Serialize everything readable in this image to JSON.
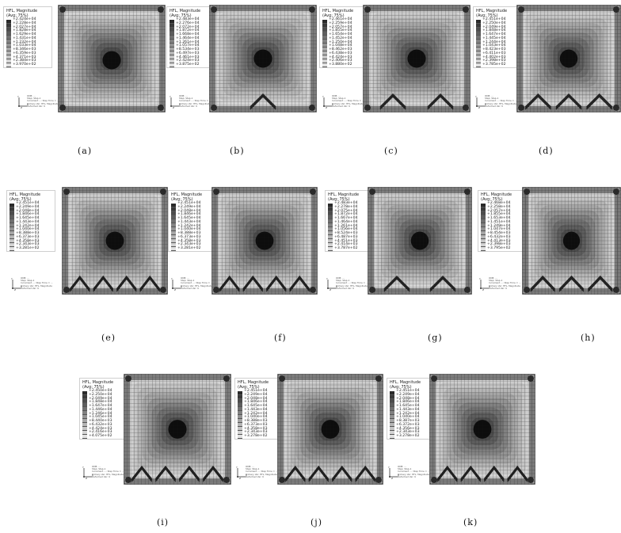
{
  "legend_title": "HFL, Magnitude",
  "legend_avg": "(Avg: 75%)",
  "triad_axes": {
    "x": "X",
    "y": "Y",
    "z": "Z"
  },
  "triad_meta": "ODB: ...\nStep: Step-1\nIncrement ...: Step Time = ...\nPrimary Var: HFL, Magnitude\nDeformed Var: U",
  "colors": {
    "contour_scale": [
      "#2a2a2a",
      "#3a3a3a",
      "#4c4c4c",
      "#5e5e5e",
      "#707070",
      "#828282",
      "#949494",
      "#a6a6a6",
      "#b6b6b6",
      "#c6c6c6",
      "#d4d4d4",
      "#e2e2e2"
    ],
    "mesh": "#1a1a1a",
    "core": "#0d0d0d"
  },
  "panels": [
    {
      "caption": "(a)",
      "bumps": 0,
      "legend": [
        "+2.424e+04",
        "+2.228e+04",
        "+2.027e+04",
        "+1.828e+04",
        "+1.629e+04",
        "+1.431e+04",
        "+1.232e+04",
        "+1.033e+04",
        "+8.346e+03",
        "+6.359e+03",
        "+4.371e+03",
        "+2.384e+03",
        "+3.970e+02"
      ]
    },
    {
      "caption": "(b)",
      "bumps": 1,
      "legend": [
        "+2.483e+04",
        "+2.276e+04",
        "+2.072e+04",
        "+1.872e+04",
        "+1.668e+04",
        "+1.464e+04",
        "+1.261e+04",
        "+1.057e+04",
        "+8.534e+03",
        "+6.497e+03",
        "+4.461e+03",
        "+2.424e+03",
        "+3.875e+02"
      ]
    },
    {
      "caption": "(c)",
      "bumps": 2,
      "legend": [
        "+2.461e+04",
        "+2.259e+04",
        "+2.057e+04",
        "+1.855e+04",
        "+1.654e+04",
        "+1.452e+04",
        "+1.250e+04",
        "+1.048e+04",
        "+8.462e+03",
        "+6.438e+03",
        "+4.424e+03",
        "+2.406e+03",
        "+3.880e+02"
      ]
    },
    {
      "caption": "(d)",
      "bumps": 3,
      "legend": [
        "+2.451e+04",
        "+2.250e+04",
        "+2.049e+04",
        "+1.848e+04",
        "+1.647e+04",
        "+1.445e+04",
        "+1.244e+04",
        "+1.043e+04",
        "+8.423e+03",
        "+6.411e+03",
        "+4.402e+03",
        "+2.398e+03",
        "+3.785e+02"
      ]
    },
    {
      "caption": "(e)",
      "bumps": 4,
      "legend": [
        "+2.451e+04",
        "+2.249e+04",
        "+2.048e+04",
        "+1.846e+04",
        "+1.645e+04",
        "+1.443e+04",
        "+1.242e+04",
        "+1.040e+04",
        "+8.388e+03",
        "+6.373e+03",
        "+4.358e+03",
        "+2.343e+03",
        "+3.281e+02"
      ]
    },
    {
      "caption": "(f)",
      "bumps": 4,
      "legend": [
        "+2.451e+04",
        "+2.249e+04",
        "+2.048e+04",
        "+1.846e+04",
        "+1.645e+04",
        "+1.443e+04",
        "+1.242e+04",
        "+1.040e+04",
        "+8.388e+03",
        "+6.373e+03",
        "+4.358e+03",
        "+2.343e+03",
        "+3.281e+02"
      ]
    },
    {
      "caption": "(g)",
      "bumps": 2,
      "legend": [
        "+2.483e+04",
        "+2.278e+04",
        "+2.075e+04",
        "+1.872e+04",
        "+1.667e+04",
        "+1.464e+04",
        "+1.261e+04",
        "+1.056e+04",
        "+8.524e+03",
        "+6.487e+03",
        "+4.451e+03",
        "+2.414e+03",
        "+3.787e+02"
      ]
    },
    {
      "caption": "(h)",
      "bumps": 3,
      "legend": [
        "+2.468e+04",
        "+2.258e+04",
        "+2.057e+04",
        "+1.855e+04",
        "+1.653e+04",
        "+1.451e+04",
        "+1.249e+04",
        "+1.047e+04",
        "+8.454e+03",
        "+6.432e+03",
        "+4.413e+03",
        "+2.398e+03",
        "+3.795e+02"
      ]
    },
    {
      "caption": "(i)",
      "bumps": 4,
      "legend": [
        "+2.450e+04",
        "+2.250e+04",
        "+2.049e+04",
        "+1.848e+04",
        "+1.647e+04",
        "+1.446e+04",
        "+1.246e+04",
        "+1.045e+04",
        "+8.440e+03",
        "+6.432e+03",
        "+4.424e+03",
        "+2.416e+03",
        "+4.075e+02"
      ]
    },
    {
      "caption": "(j)",
      "bumps": 4,
      "legend": [
        "+2.451e+04",
        "+2.249e+04",
        "+2.048e+04",
        "+1.846e+04",
        "+1.645e+04",
        "+1.443e+04",
        "+1.242e+04",
        "+1.040e+04",
        "+8.388e+03",
        "+6.373e+03",
        "+4.358e+03",
        "+2.343e+03",
        "+3.278e+02"
      ]
    },
    {
      "caption": "(k)",
      "bumps": 4,
      "legend": [
        "+2.451e+04",
        "+2.249e+04",
        "+2.048e+04",
        "+1.846e+04",
        "+1.645e+04",
        "+1.443e+04",
        "+1.242e+04",
        "+1.040e+04",
        "+8.387e+03",
        "+6.372e+03",
        "+4.356e+03",
        "+2.343e+03",
        "+3.278e+02"
      ]
    }
  ]
}
